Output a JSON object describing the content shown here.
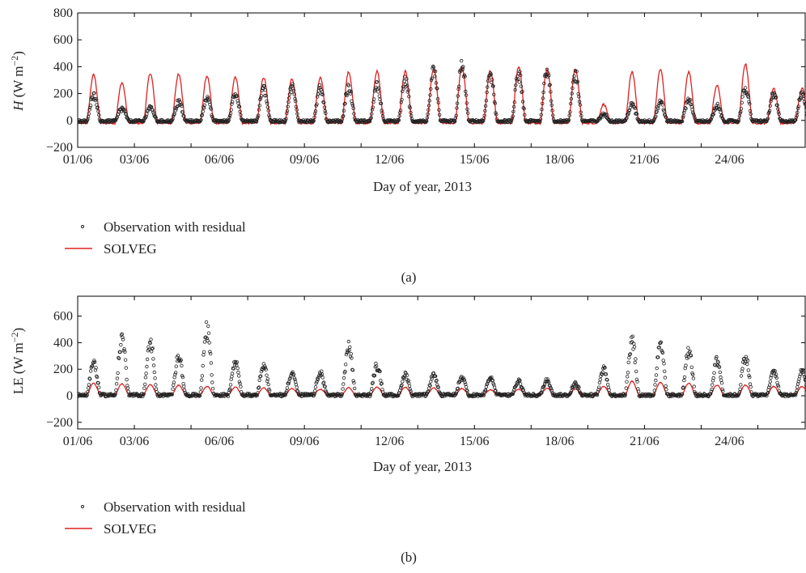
{
  "colors": {
    "model": "#e02020",
    "observation": "#222222",
    "axis": "#000000"
  },
  "chart_data": [
    {
      "type": "line",
      "panel_label": "(a)",
      "ylabel": "H (W m⁻²)",
      "ylabel_parts": {
        "var": "H",
        "unit": " (W m",
        "exp": "−2",
        "close": ")"
      },
      "xlabel": "Day of year, 2013",
      "xlim": [
        0,
        25.7
      ],
      "ylim": [
        -200,
        800
      ],
      "yticks": [
        -200,
        0,
        200,
        400,
        600,
        800
      ],
      "ytick_labels": [
        "−200",
        "0",
        "200",
        "400",
        "600",
        "800"
      ],
      "xticks": [
        0,
        2,
        4,
        6,
        8,
        10,
        12,
        14,
        16,
        18,
        20,
        22,
        24
      ],
      "xtick_labels": [
        "01/06",
        "03/06",
        "06/06",
        "09/06",
        "12/06",
        "15/06",
        "18/06",
        "21/06",
        "24/06"
      ],
      "xtick_label_positions": [
        0,
        2,
        5,
        8,
        11,
        14,
        17,
        20,
        23
      ],
      "grid": false,
      "legend_placement": "below",
      "series": [
        {
          "name": "Observation with residual",
          "kind": "scatter",
          "daily_peak": [
            205,
            100,
            115,
            155,
            185,
            230,
            270,
            275,
            265,
            280,
            300,
            330,
            420,
            470,
            390,
            395,
            440,
            390,
            50,
            135,
            150,
            175,
            120,
            270,
            230
          ],
          "night": -5
        },
        {
          "name": "SOLVEG",
          "kind": "line",
          "daily_peak": [
            340,
            280,
            350,
            345,
            330,
            325,
            320,
            310,
            320,
            360,
            365,
            365,
            380,
            395,
            370,
            400,
            380,
            380,
            120,
            360,
            380,
            360,
            260,
            420,
            240
          ],
          "night": -20
        }
      ],
      "legend": [
        "Observation with residual",
        "SOLVEG"
      ]
    },
    {
      "type": "line",
      "panel_label": "(b)",
      "ylabel": "LE (W m⁻²)",
      "ylabel_parts": {
        "var": "LE",
        "unit": " (W m",
        "exp": "−2",
        "close": ")"
      },
      "xlabel": "Day of year, 2013",
      "xlim": [
        0,
        25.7
      ],
      "ylim": [
        -250,
        750
      ],
      "yticks": [
        -200,
        0,
        200,
        400,
        600
      ],
      "ytick_labels": [
        "−200",
        "0",
        "200",
        "400",
        "600"
      ],
      "xticks": [
        0,
        2,
        4,
        6,
        8,
        10,
        12,
        14,
        16,
        18,
        20,
        22,
        24
      ],
      "xtick_labels": [
        "01/06",
        "03/06",
        "06/06",
        "09/06",
        "12/06",
        "15/06",
        "18/06",
        "21/06",
        "24/06"
      ],
      "xtick_label_positions": [
        0,
        2,
        5,
        8,
        11,
        14,
        17,
        20,
        23
      ],
      "grid": false,
      "legend_placement": "below",
      "series": [
        {
          "name": "Observation with residual",
          "kind": "scatter",
          "daily_peak": [
            280,
            490,
            450,
            350,
            560,
            300,
            260,
            200,
            190,
            420,
            260,
            180,
            170,
            160,
            150,
            120,
            140,
            100,
            230,
            480,
            420,
            380,
            300,
            330,
            210
          ],
          "night": 5
        },
        {
          "name": "SOLVEG",
          "kind": "line",
          "daily_peak": [
            95,
            90,
            85,
            80,
            70,
            65,
            60,
            55,
            50,
            60,
            65,
            65,
            60,
            55,
            45,
            50,
            55,
            50,
            70,
            110,
            100,
            95,
            80,
            80,
            70
          ],
          "night": 5
        }
      ],
      "legend": [
        "Observation with residual",
        "SOLVEG"
      ]
    }
  ]
}
